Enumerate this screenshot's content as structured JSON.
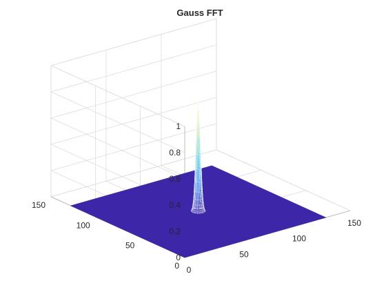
{
  "chart_data": {
    "type": "surface",
    "title": "Gauss FFT",
    "x": {
      "range": [
        0,
        150
      ],
      "ticks": [
        0,
        50,
        100,
        150
      ],
      "tick_labels": [
        "0",
        "50",
        "100",
        "150"
      ]
    },
    "y": {
      "range": [
        0,
        150
      ],
      "ticks": [
        0,
        50,
        100,
        150
      ],
      "tick_labels": [
        "0",
        "50",
        "100",
        "150"
      ]
    },
    "z": {
      "range": [
        0,
        1
      ],
      "ticks": [
        0,
        0.2,
        0.4,
        0.6,
        0.8,
        1
      ],
      "tick_labels": [
        "0",
        "0.2",
        "0.4",
        "0.6",
        "0.8",
        "1"
      ]
    },
    "grid": true,
    "colormap": "parula",
    "surface": {
      "x_extent": [
        0,
        128
      ],
      "y_extent": [
        0,
        128
      ],
      "peak": {
        "x": 64,
        "y": 64,
        "z": 0.85
      },
      "sigma": 1.6
    },
    "base_color": "#3e26a8"
  }
}
